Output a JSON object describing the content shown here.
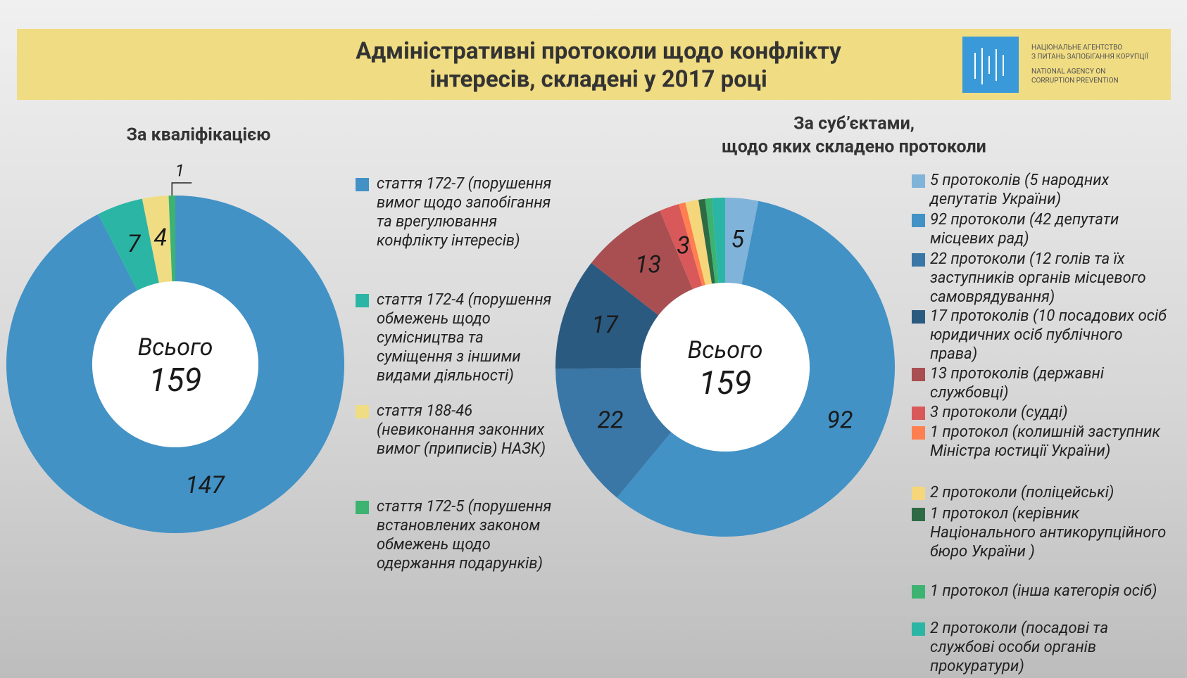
{
  "header": {
    "title": [
      "Адміністративні протоколи щодо конфлікту",
      "інтересів, складені у 2017 році"
    ],
    "logo_lines": [
      "НАЦІОНАЛЬНЕ АГЕНТСТВО",
      "З ПИТАНЬ ЗАПОБІГАННЯ КОРУПЦІЇ",
      "NATIONAL AGENCY ON",
      "CORRUPTION PREVENTION"
    ]
  },
  "chart_data": [
    {
      "type": "donut",
      "title": [
        "За кваліфікацією"
      ],
      "center_label": "Всього",
      "total": 159,
      "categories": [
        "стаття 172-7 (порушення вимог щодо запобігання та врегулювання конфлікту інтересів)",
        "стаття 172-4 (порушення обмежень щодо сумісництва та суміщення з іншими видами діяльності)",
        "стаття 188-46 (невиконання законних вимог (приписів) НАЗК)",
        "стаття 172-5 (порушення встановлених законом обмежень щодо одержання подарунків)"
      ],
      "colors": [
        "#4292c6",
        "#2bb5a5",
        "#f0dc82",
        "#3cb371"
      ],
      "values": [
        147,
        7,
        4,
        1
      ]
    },
    {
      "type": "donut",
      "title": [
        "За суб’єктами,",
        "щодо яких складено протоколи"
      ],
      "center_label": "Всього",
      "total": 159,
      "categories": [
        "5 протоколів (5 народних депутатів України)",
        "92 протоколи (42 депутати місцевих рад)",
        "22 протоколи (12 голів та їх заступників органів місцевого самоврядування)",
        "17 протоколів (10 посадових осіб юридичних осіб публічного права)",
        "13 протоколів (державні службовці)",
        "3 протоколи (судді)",
        "1 протокол (колишній заступник Міністра юстиції України)",
        "2 протоколи (поліцейські)",
        "1 протокол (керівник Національного антикорупційного бюро України )",
        "1 протокол (інша категорія осіб)",
        "2 протоколи (посадові та службові особи органів прокуратури)"
      ],
      "colors": [
        "#7fb3d9",
        "#4292c6",
        "#3a77a6",
        "#2b5a80",
        "#a94f52",
        "#d9595a",
        "#ff7f50",
        "#f6d67a",
        "#2e6b45",
        "#3cb371",
        "#2bb5a5"
      ],
      "values": [
        5,
        92,
        22,
        17,
        13,
        3,
        1,
        2,
        1,
        1,
        2
      ]
    }
  ]
}
